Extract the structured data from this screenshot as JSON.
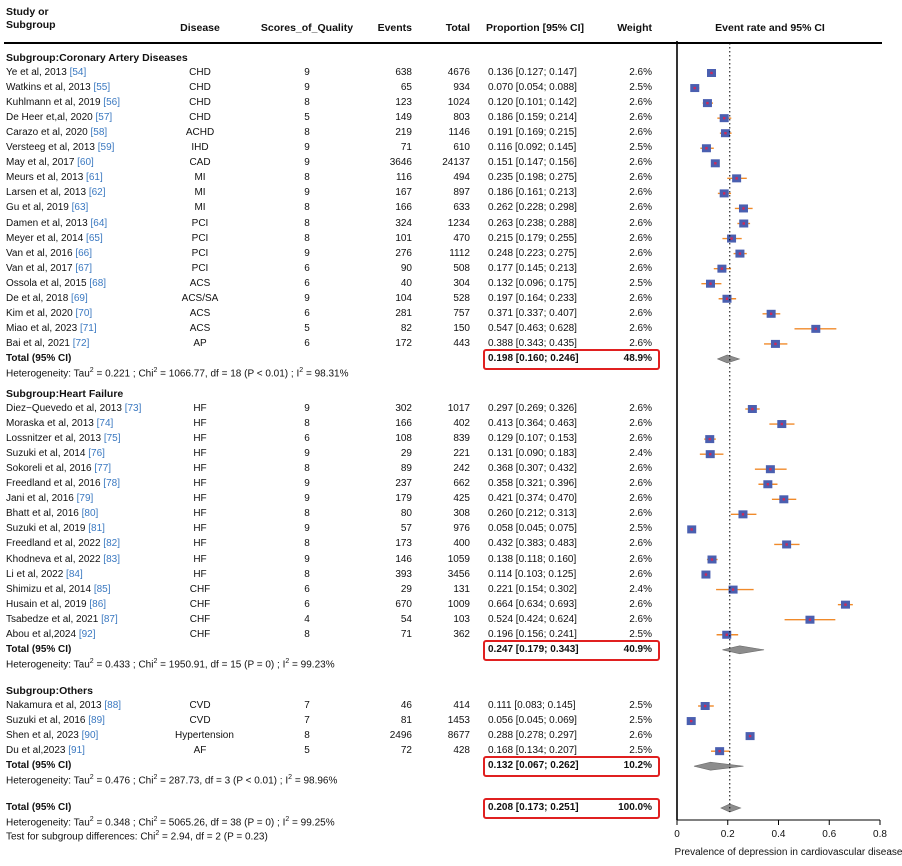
{
  "headers": {
    "study": "Study or\nSubgroup",
    "disease": "Disease",
    "quality": "Scores_of_Quality",
    "events": "Events",
    "total": "Total",
    "proportion": "Proportion [95% CI]",
    "weight": "Weight",
    "plot": "Event rate and 95% CI"
  },
  "colors": {
    "box": "#4a5fb0",
    "box_core": "#cc2a5a",
    "ci": "#f08a2a",
    "diamond": "#8c8c8c",
    "highlight": "#e02020"
  },
  "chart_data": {
    "type": "forest",
    "xlabel": "Prevalence of depression in cardiovascular disease",
    "xlim": [
      0,
      0.8
    ],
    "xticks": [
      "0",
      "0.2",
      "0.4",
      "0.6",
      "0.8"
    ],
    "reference_line": 0.208,
    "subgroups": [
      {
        "title": "Subgroup:Coronary Artery Diseases",
        "studies": [
          {
            "study": "Ye et al, 2013",
            "ref": "[54]",
            "disease": "CHD",
            "quality": "9",
            "events": "638",
            "total": "4676",
            "prop": "0.136 [0.127; 0.147]",
            "weight": "2.6%",
            "est": 0.136,
            "lo": 0.127,
            "hi": 0.147
          },
          {
            "study": "Watkins et al, 2013",
            "ref": "[55]",
            "disease": "CHD",
            "quality": "9",
            "events": "65",
            "total": "934",
            "prop": "0.070 [0.054; 0.088]",
            "weight": "2.5%",
            "est": 0.07,
            "lo": 0.054,
            "hi": 0.088
          },
          {
            "study": "Kuhlmann et al, 2019",
            "ref": "[56]",
            "disease": "CHD",
            "quality": "8",
            "events": "123",
            "total": "1024",
            "prop": "0.120 [0.101; 0.142]",
            "weight": "2.6%",
            "est": 0.12,
            "lo": 0.101,
            "hi": 0.142
          },
          {
            "study": "De Heer et,al, 2020",
            "ref": "[57]",
            "disease": "CHD",
            "quality": "5",
            "events": "149",
            "total": "803",
            "prop": "0.186 [0.159; 0.214]",
            "weight": "2.6%",
            "est": 0.186,
            "lo": 0.159,
            "hi": 0.214
          },
          {
            "study": "Carazo et al, 2020",
            "ref": "[58]",
            "disease": "ACHD",
            "quality": "8",
            "events": "219",
            "total": "1146",
            "prop": "0.191 [0.169; 0.215]",
            "weight": "2.6%",
            "est": 0.191,
            "lo": 0.169,
            "hi": 0.215
          },
          {
            "study": "Versteeg et al, 2013",
            "ref": "[59]",
            "disease": "IHD",
            "quality": "9",
            "events": "71",
            "total": "610",
            "prop": "0.116 [0.092; 0.145]",
            "weight": "2.5%",
            "est": 0.116,
            "lo": 0.092,
            "hi": 0.145
          },
          {
            "study": "May et al, 2017",
            "ref": "[60]",
            "disease": "CAD",
            "quality": "9",
            "events": "3646",
            "total": "24137",
            "prop": "0.151 [0.147; 0.156]",
            "weight": "2.6%",
            "est": 0.151,
            "lo": 0.147,
            "hi": 0.156
          },
          {
            "study": "Meurs et al, 2013",
            "ref": "[61]",
            "disease": "MI",
            "quality": "8",
            "events": "116",
            "total": "494",
            "prop": "0.235 [0.198; 0.275]",
            "weight": "2.6%",
            "est": 0.235,
            "lo": 0.198,
            "hi": 0.275
          },
          {
            "study": "Larsen et al, 2013",
            "ref": "[62]",
            "disease": "MI",
            "quality": "9",
            "events": "167",
            "total": "897",
            "prop": "0.186 [0.161; 0.213]",
            "weight": "2.6%",
            "est": 0.186,
            "lo": 0.161,
            "hi": 0.213
          },
          {
            "study": "Gu et al, 2019",
            "ref": "[63]",
            "disease": "MI",
            "quality": "8",
            "events": "166",
            "total": "633",
            "prop": "0.262 [0.228; 0.298]",
            "weight": "2.6%",
            "est": 0.262,
            "lo": 0.228,
            "hi": 0.298
          },
          {
            "study": "Damen et al, 2013",
            "ref": "[64]",
            "disease": "PCI",
            "quality": "8",
            "events": "324",
            "total": "1234",
            "prop": "0.263 [0.238; 0.288]",
            "weight": "2.6%",
            "est": 0.263,
            "lo": 0.238,
            "hi": 0.288
          },
          {
            "study": "Meyer et al, 2014",
            "ref": "[65]",
            "disease": "PCI",
            "quality": "8",
            "events": "101",
            "total": "470",
            "prop": "0.215 [0.179; 0.255]",
            "weight": "2.6%",
            "est": 0.215,
            "lo": 0.179,
            "hi": 0.255
          },
          {
            "study": "Van et al, 2016",
            "ref": "[66]",
            "disease": "PCI",
            "quality": "9",
            "events": "276",
            "total": "1112",
            "prop": "0.248 [0.223; 0.275]",
            "weight": "2.6%",
            "est": 0.248,
            "lo": 0.223,
            "hi": 0.275
          },
          {
            "study": "Van et al, 2017",
            "ref": "[67]",
            "disease": "PCI",
            "quality": "6",
            "events": "90",
            "total": "508",
            "prop": "0.177 [0.145; 0.213]",
            "weight": "2.6%",
            "est": 0.177,
            "lo": 0.145,
            "hi": 0.213
          },
          {
            "study": "Ossola et al, 2015",
            "ref": "[68]",
            "disease": "ACS",
            "quality": "6",
            "events": "40",
            "total": "304",
            "prop": "0.132 [0.096; 0.175]",
            "weight": "2.5%",
            "est": 0.132,
            "lo": 0.096,
            "hi": 0.175
          },
          {
            "study": "De et al, 2018",
            "ref": "[69]",
            "disease": "ACS/SA",
            "quality": "9",
            "events": "104",
            "total": "528",
            "prop": "0.197 [0.164; 0.233]",
            "weight": "2.6%",
            "est": 0.197,
            "lo": 0.164,
            "hi": 0.233
          },
          {
            "study": "Kim et al, 2020",
            "ref": "[70]",
            "disease": "ACS",
            "quality": "6",
            "events": "281",
            "total": "757",
            "prop": "0.371 [0.337; 0.407]",
            "weight": "2.6%",
            "est": 0.371,
            "lo": 0.337,
            "hi": 0.407
          },
          {
            "study": "Miao et al, 2023",
            "ref": "[71]",
            "disease": "ACS",
            "quality": "5",
            "events": "82",
            "total": "150",
            "prop": "0.547 [0.463; 0.628]",
            "weight": "2.6%",
            "est": 0.547,
            "lo": 0.463,
            "hi": 0.628
          },
          {
            "study": "Bai et al, 2021",
            "ref": "[72]",
            "disease": "AP",
            "quality": "6",
            "events": "172",
            "total": "443",
            "prop": "0.388 [0.343; 0.435]",
            "weight": "2.6%",
            "est": 0.388,
            "lo": 0.343,
            "hi": 0.435
          }
        ],
        "total": {
          "label": "Total (95% CI)",
          "prop": "0.198 [0.160; 0.246]",
          "weight": "48.9%",
          "est": 0.198,
          "lo": 0.16,
          "hi": 0.246
        },
        "het": {
          "pre": "Heterogeneity:  Tau",
          "tau": "0.221",
          "chi": "1066.77",
          "df": "18",
          "p": "(P < 0.01)",
          "i2": "98.31%"
        }
      },
      {
        "title": "Subgroup:Heart Failure",
        "studies": [
          {
            "study": "Diez−Quevedo et al, 2013",
            "ref": "[73]",
            "disease": "HF",
            "quality": "9",
            "events": "302",
            "total": "1017",
            "prop": "0.297 [0.269; 0.326]",
            "weight": "2.6%",
            "est": 0.297,
            "lo": 0.269,
            "hi": 0.326
          },
          {
            "study": "Moraska et al, 2013",
            "ref": "[74]",
            "disease": "HF",
            "quality": "8",
            "events": "166",
            "total": "402",
            "prop": "0.413 [0.364; 0.463]",
            "weight": "2.6%",
            "est": 0.413,
            "lo": 0.364,
            "hi": 0.463
          },
          {
            "study": "Lossnitzer et al, 2013",
            "ref": "[75]",
            "disease": "HF",
            "quality": "6",
            "events": "108",
            "total": "839",
            "prop": "0.129 [0.107; 0.153]",
            "weight": "2.6%",
            "est": 0.129,
            "lo": 0.107,
            "hi": 0.153
          },
          {
            "study": "Suzuki et al, 2014",
            "ref": "[76]",
            "disease": "HF",
            "quality": "9",
            "events": "29",
            "total": "221",
            "prop": "0.131 [0.090; 0.183]",
            "weight": "2.4%",
            "est": 0.131,
            "lo": 0.09,
            "hi": 0.183
          },
          {
            "study": "Sokoreli et al, 2016",
            "ref": "[77]",
            "disease": "HF",
            "quality": "8",
            "events": "89",
            "total": "242",
            "prop": "0.368 [0.307; 0.432]",
            "weight": "2.6%",
            "est": 0.368,
            "lo": 0.307,
            "hi": 0.432
          },
          {
            "study": "Freedland et al, 2016",
            "ref": "[78]",
            "disease": "HF",
            "quality": "9",
            "events": "237",
            "total": "662",
            "prop": "0.358 [0.321; 0.396]",
            "weight": "2.6%",
            "est": 0.358,
            "lo": 0.321,
            "hi": 0.396
          },
          {
            "study": "Jani et al, 2016",
            "ref": "[79]",
            "disease": "HF",
            "quality": "9",
            "events": "179",
            "total": "425",
            "prop": "0.421 [0.374; 0.470]",
            "weight": "2.6%",
            "est": 0.421,
            "lo": 0.374,
            "hi": 0.47
          },
          {
            "study": "Bhatt et al, 2016",
            "ref": "[80]",
            "disease": "HF",
            "quality": "8",
            "events": "80",
            "total": "308",
            "prop": "0.260 [0.212; 0.313]",
            "weight": "2.6%",
            "est": 0.26,
            "lo": 0.212,
            "hi": 0.313
          },
          {
            "study": "Suzuki et al, 2019",
            "ref": "[81]",
            "disease": "HF",
            "quality": "9",
            "events": "57",
            "total": "976",
            "prop": "0.058 [0.045; 0.075]",
            "weight": "2.5%",
            "est": 0.058,
            "lo": 0.045,
            "hi": 0.075
          },
          {
            "study": "Freedland et al, 2022",
            "ref": "[82]",
            "disease": "HF",
            "quality": "8",
            "events": "173",
            "total": "400",
            "prop": "0.432 [0.383; 0.483]",
            "weight": "2.6%",
            "est": 0.432,
            "lo": 0.383,
            "hi": 0.483
          },
          {
            "study": "Khodneva et al, 2022",
            "ref": "[83]",
            "disease": "HF",
            "quality": "9",
            "events": "146",
            "total": "1059",
            "prop": "0.138 [0.118; 0.160]",
            "weight": "2.6%",
            "est": 0.138,
            "lo": 0.118,
            "hi": 0.16
          },
          {
            "study": "Li et al, 2022",
            "ref": "[84]",
            "disease": "HF",
            "quality": "8",
            "events": "393",
            "total": "3456",
            "prop": "0.114 [0.103; 0.125]",
            "weight": "2.6%",
            "est": 0.114,
            "lo": 0.103,
            "hi": 0.125
          },
          {
            "study": "Shimizu et al, 2014",
            "ref": "[85]",
            "disease": "CHF",
            "quality": "6",
            "events": "29",
            "total": "131",
            "prop": "0.221 [0.154; 0.302]",
            "weight": "2.4%",
            "est": 0.221,
            "lo": 0.154,
            "hi": 0.302
          },
          {
            "study": "Husain et al, 2019",
            "ref": "[86]",
            "disease": "CHF",
            "quality": "6",
            "events": "670",
            "total": "1009",
            "prop": "0.664 [0.634; 0.693]",
            "weight": "2.6%",
            "est": 0.664,
            "lo": 0.634,
            "hi": 0.693
          },
          {
            "study": "Tsabedze et al, 2021",
            "ref": "[87]",
            "disease": "CHF",
            "quality": "4",
            "events": "54",
            "total": "103",
            "prop": "0.524 [0.424; 0.624]",
            "weight": "2.6%",
            "est": 0.524,
            "lo": 0.424,
            "hi": 0.624
          },
          {
            "study": "Abou et al,2024",
            "ref": "[92]",
            "disease": "CHF",
            "quality": "8",
            "events": "71",
            "total": "362",
            "prop": "0.196 [0.156; 0.241]",
            "weight": "2.5%",
            "est": 0.196,
            "lo": 0.156,
            "hi": 0.241
          }
        ],
        "total": {
          "label": "Total (95% CI)",
          "prop": "0.247 [0.179; 0.343]",
          "weight": "40.9%",
          "est": 0.247,
          "lo": 0.179,
          "hi": 0.343
        },
        "het": {
          "pre": "Heterogeneity:  Tau",
          "tau": "0.433",
          "chi": "1950.91",
          "df": "15",
          "p": "(P = 0)",
          "i2": "99.23%"
        }
      },
      {
        "title": "Subgroup:Others",
        "studies": [
          {
            "study": "Nakamura et al, 2013",
            "ref": "[88]",
            "disease": "CVD",
            "quality": "7",
            "events": "46",
            "total": "414",
            "prop": "0.111 [0.083; 0.145]",
            "weight": "2.5%",
            "est": 0.111,
            "lo": 0.083,
            "hi": 0.145
          },
          {
            "study": "Suzuki et al, 2016",
            "ref": "[89]",
            "disease": "CVD",
            "quality": "7",
            "events": "81",
            "total": "1453",
            "prop": "0.056 [0.045; 0.069]",
            "weight": "2.5%",
            "est": 0.056,
            "lo": 0.045,
            "hi": 0.069
          },
          {
            "study": "Shen et al, 2023",
            "ref": "[90]",
            "disease": "Hypertension",
            "quality": "8",
            "events": "2496",
            "total": "8677",
            "prop": "0.288 [0.278; 0.297]",
            "weight": "2.6%",
            "est": 0.288,
            "lo": 0.278,
            "hi": 0.297
          },
          {
            "study": "Du et al,2023",
            "ref": "[91]",
            "disease": "AF",
            "quality": "5",
            "events": "72",
            "total": "428",
            "prop": "0.168 [0.134; 0.207]",
            "weight": "2.5%",
            "est": 0.168,
            "lo": 0.134,
            "hi": 0.207
          }
        ],
        "total": {
          "label": "Total (95% CI)",
          "prop": "0.132 [0.067; 0.262]",
          "weight": "10.2%",
          "est": 0.132,
          "lo": 0.067,
          "hi": 0.262
        },
        "het": {
          "pre": "Heterogeneity:  Tau",
          "tau": "0.476",
          "chi": "287.73",
          "df": "3",
          "p": "(P < 0.01)",
          "i2": "98.96%"
        }
      }
    ],
    "overall": {
      "label": "Total (95% CI)",
      "prop": "0.208 [0.173; 0.251]",
      "weight": "100.0%",
      "est": 0.208,
      "lo": 0.173,
      "hi": 0.251
    },
    "overall_het": {
      "pre": "Heterogeneity:  Tau",
      "tau": "0.348",
      "chi": "5065.26",
      "df": "38",
      "p": "(P = 0)",
      "i2": "99.25%"
    },
    "subgroup_test": {
      "pre": "Test for subgroup differences:   Chi",
      "chi": "2.94",
      "df": "2",
      "p": "(P = 0.23)"
    }
  }
}
